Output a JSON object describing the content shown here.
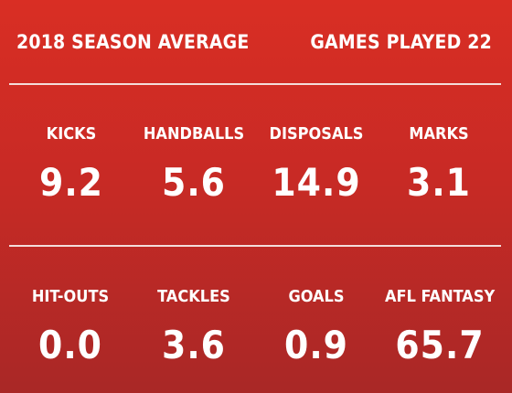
{
  "header": {
    "title": "2018 SEASON AVERAGE",
    "games_played": "GAMES PLAYED 22"
  },
  "stats": {
    "row1": [
      {
        "label": "KICKS",
        "value": "9.2"
      },
      {
        "label": "HANDBALLS",
        "value": "5.6"
      },
      {
        "label": "DISPOSALS",
        "value": "14.9"
      },
      {
        "label": "MARKS",
        "value": "3.1"
      }
    ],
    "row2": [
      {
        "label": "HIT-OUTS",
        "value": "0.0"
      },
      {
        "label": "TACKLES",
        "value": "3.6"
      },
      {
        "label": "GOALS",
        "value": "0.9"
      },
      {
        "label": "AFL FANTASY",
        "value": "65.7"
      }
    ]
  },
  "colors": {
    "background_top": "#d92e24",
    "background_bottom": "#a92826",
    "text": "#ffffff",
    "divider": "#f6e7e5"
  }
}
